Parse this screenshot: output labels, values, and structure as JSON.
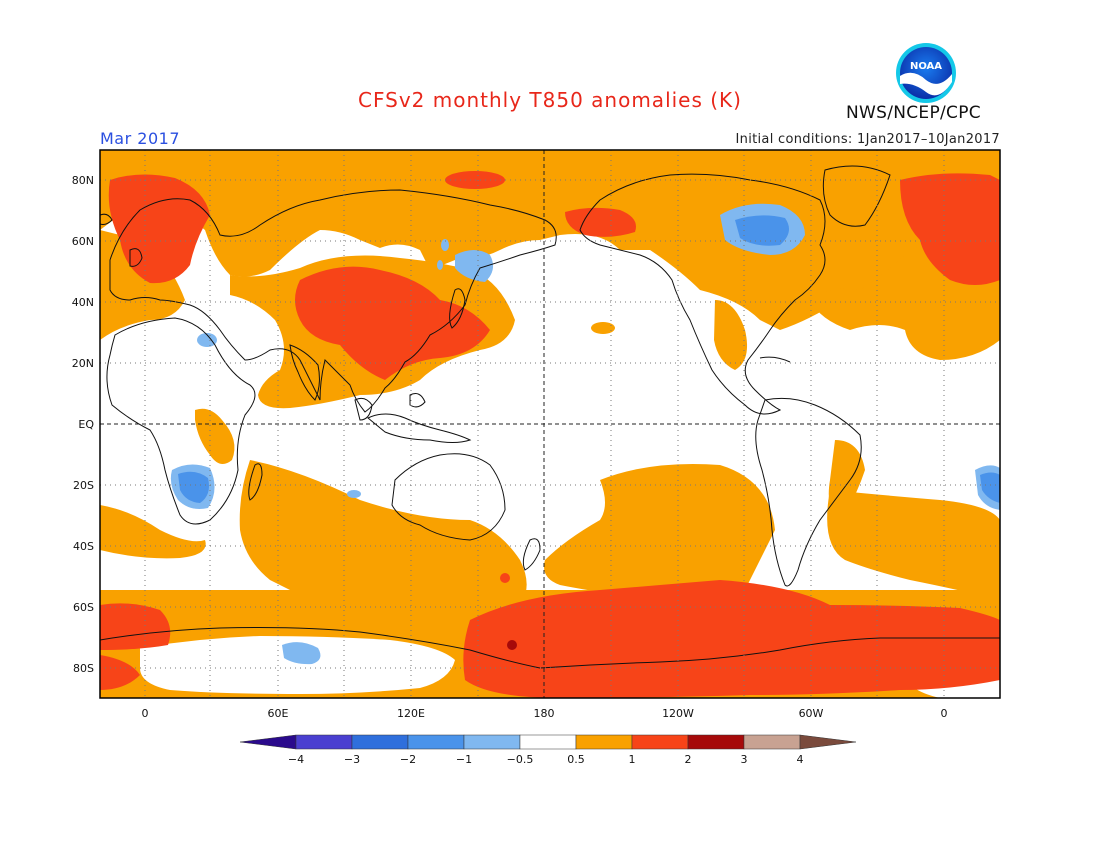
{
  "title": "CFSv2 monthly T850 anomalies (K)",
  "month": "Mar 2017",
  "initial_conditions": "Initial conditions: 1Jan2017–10Jan2017",
  "agency": "NWS/NCEP/CPC",
  "logo": {
    "icon": "noaa-logo-icon",
    "text": "NOAA"
  },
  "map": {
    "projection": "equirectangular",
    "lon_range": [
      -20,
      380
    ],
    "lat_range": [
      -90,
      90
    ],
    "grid": "dotted",
    "lat_ticks": [
      "80N",
      "60N",
      "40N",
      "20N",
      "EQ",
      "20S",
      "40S",
      "60S",
      "80S"
    ],
    "lon_ticks": [
      "0",
      "60E",
      "120E",
      "180",
      "120W",
      "60W",
      "0"
    ]
  },
  "colorbar": {
    "labels": [
      "−4",
      "−3",
      "−2",
      "−1",
      "−0.5",
      "0.5",
      "1",
      "2",
      "3",
      "4"
    ],
    "colors": [
      "#2a0a8c",
      "#4a3fd0",
      "#2f6fdc",
      "#4a93ea",
      "#80b8f0",
      "#ffffff",
      "#f9a100",
      "#f74418",
      "#a60a0a",
      "#c8a292",
      "#7a4a3c"
    ]
  },
  "colors": {
    "anomaly_0_5_to_1": "#f9a100",
    "anomaly_1_to_2": "#f74418",
    "anomaly_2_to_3": "#a60a0a",
    "anomaly_neg_0_5_to_neg_1": "#80b8f0",
    "anomaly_neg_1_to_neg_2": "#4a93ea",
    "anomaly_neg_2_to_neg_3": "#2f6fdc"
  }
}
